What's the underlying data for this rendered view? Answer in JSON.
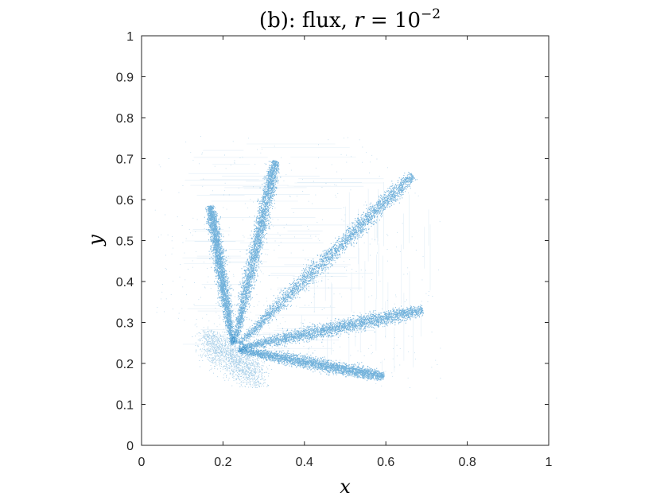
{
  "chart_data": {
    "type": "scatter",
    "title_prefix": "(b): flux, ",
    "title_r": "r",
    "title_eq": " = 10",
    "title_exp": "−2",
    "xlabel": "x",
    "ylabel": "y",
    "xlim": [
      0,
      1
    ],
    "ylim": [
      0,
      1
    ],
    "x_ticks": [
      "0",
      "0.2",
      "0.4",
      "0.6",
      "0.8",
      "1"
    ],
    "x_tick_values": [
      0,
      0.2,
      0.4,
      0.6,
      0.8,
      1
    ],
    "y_ticks": [
      "0",
      "0.1",
      "0.2",
      "0.3",
      "0.4",
      "0.5",
      "0.6",
      "0.7",
      "0.8",
      "0.9",
      "1"
    ],
    "y_tick_values": [
      0,
      0.1,
      0.2,
      0.3,
      0.4,
      0.5,
      0.6,
      0.7,
      0.8,
      0.9,
      1
    ],
    "grid": false,
    "box": true,
    "point_color": "#0072BD",
    "source_point": {
      "x": 0.225,
      "y": 0.235
    },
    "series": [
      {
        "start": [
          0.225,
          0.235
        ],
        "end": [
          0.168,
          0.585
        ],
        "width": 0.012
      },
      {
        "start": [
          0.225,
          0.235
        ],
        "end": [
          0.328,
          0.695
        ],
        "width": 0.014
      },
      {
        "start": [
          0.225,
          0.235
        ],
        "end": [
          0.665,
          0.66
        ],
        "width": 0.016
      },
      {
        "start": [
          0.225,
          0.235
        ],
        "end": [
          0.69,
          0.33
        ],
        "width": 0.015
      },
      {
        "start": [
          0.225,
          0.235
        ],
        "end": [
          0.595,
          0.168
        ],
        "width": 0.013
      }
    ],
    "scatter_cloud": {
      "x_range": [
        0.15,
        0.29
      ],
      "y_range": [
        0.14,
        0.28
      ]
    }
  }
}
